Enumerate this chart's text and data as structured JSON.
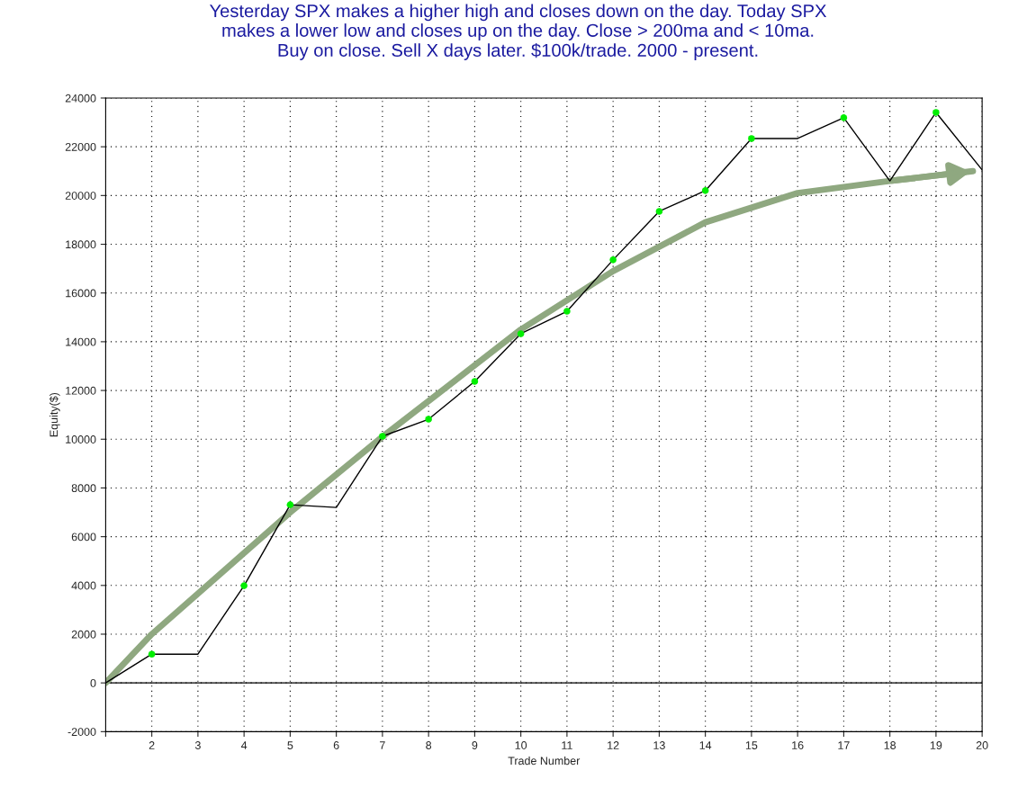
{
  "chart_data": {
    "type": "line",
    "title": "Yesterday SPX makes a higher high and closes down on the day. Today SPX\nmakes a lower low and closes up on the day. Close > 200ma and < 10ma.\nBuy on close. Sell X days later. $100k/trade. 2000 - present.",
    "xlabel": "Trade Number",
    "ylabel": "Equity($)",
    "series": [
      {
        "color": "#000000",
        "x": [
          1,
          2,
          3,
          4,
          5,
          6,
          7,
          8,
          9,
          10,
          11,
          12,
          13,
          14,
          15,
          16,
          17,
          18,
          19,
          20
        ],
        "values": [
          0,
          1180,
          1180,
          3990,
          7310,
          7200,
          10120,
          10820,
          12370,
          14330,
          15250,
          17360,
          19350,
          20200,
          22340,
          22340,
          23190,
          20600,
          23410,
          21050
        ]
      },
      {
        "type": "scatter",
        "color": "#00ee00",
        "x": [
          2,
          4,
          5,
          7,
          8,
          9,
          10,
          11,
          12,
          13,
          14,
          15,
          17,
          19
        ],
        "values": [
          1180,
          3990,
          7310,
          10120,
          10820,
          12370,
          14330,
          15250,
          17360,
          19350,
          20200,
          22340,
          23190,
          23410
        ]
      },
      {
        "color": "#8fa880",
        "x": [
          1,
          2,
          5,
          7,
          10,
          12,
          14,
          16,
          18,
          19.8
        ],
        "values": [
          0,
          2000,
          7000,
          10100,
          14500,
          16900,
          18900,
          20100,
          20600,
          21000
        ]
      }
    ],
    "xlim": [
      1,
      20
    ],
    "xticks": [
      {
        "value": 1,
        "label": null
      },
      2,
      3,
      4,
      5,
      6,
      7,
      8,
      9,
      10,
      11,
      12,
      13,
      14,
      15,
      16,
      17,
      18,
      19,
      20
    ],
    "ylim": [
      -2000,
      24000
    ],
    "yticks": [
      -2000,
      0,
      2000,
      4000,
      6000,
      8000,
      10000,
      12000,
      14000,
      16000,
      18000,
      20000,
      22000,
      24000
    ],
    "ref_lines": [
      {
        "axis": "y",
        "value": 0,
        "color": "#000000"
      }
    ],
    "grid": true,
    "line_style": "solid"
  }
}
